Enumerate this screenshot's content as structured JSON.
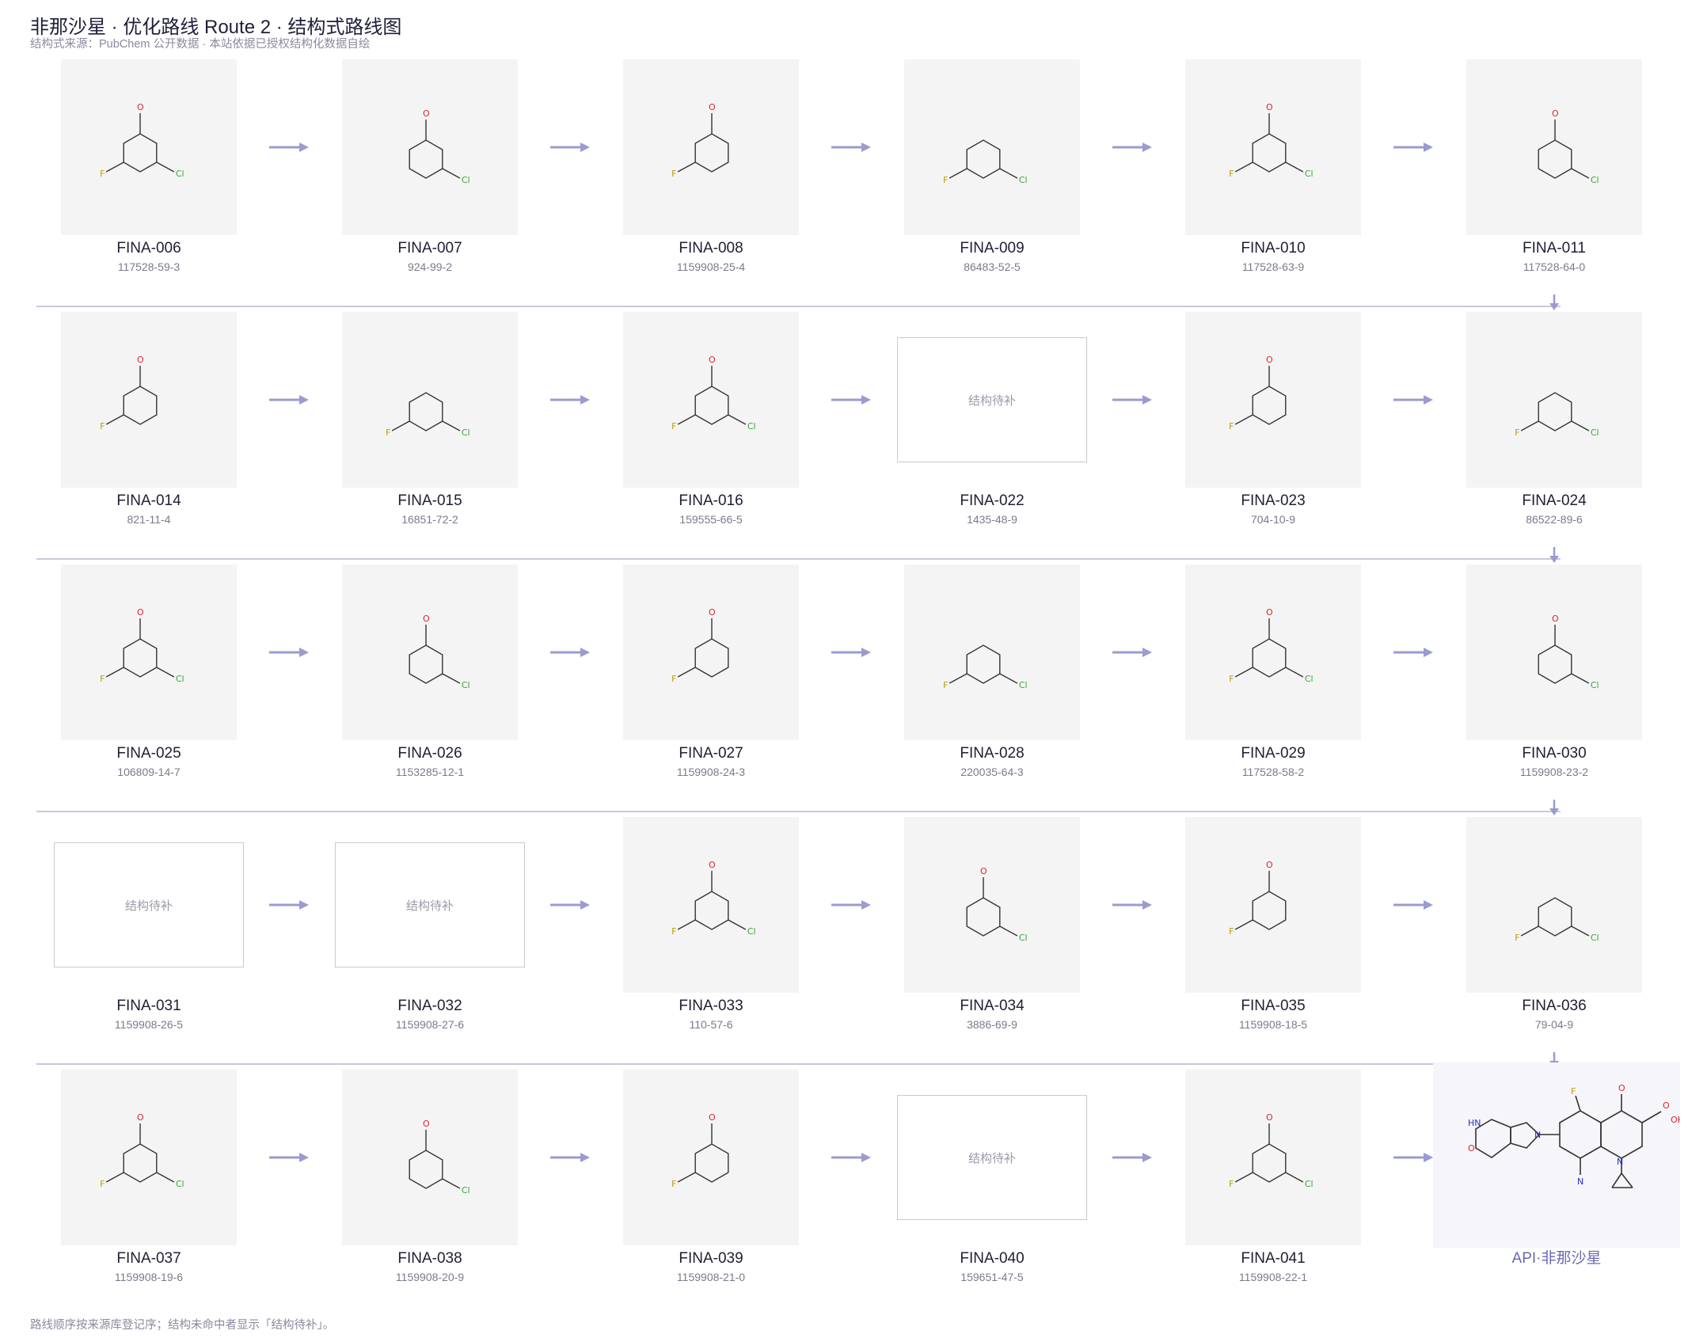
{
  "header": {
    "title": "非那沙星 · 优化路线 Route 2 · 结构式路线图",
    "subtitle": "结构式来源：PubChem 公开数据 · 本站依据已授权结构化数据自绘"
  },
  "placeholder_text": "结构待补",
  "compounds": [
    {
      "code": "FINA-006",
      "cas": "117528-59-3",
      "has_structure": true
    },
    {
      "code": "FINA-007",
      "cas": "924-99-2",
      "has_structure": true
    },
    {
      "code": "FINA-008",
      "cas": "1159908-25-4",
      "has_structure": true
    },
    {
      "code": "FINA-009",
      "cas": "86483-52-5",
      "has_structure": true
    },
    {
      "code": "FINA-010",
      "cas": "117528-63-9",
      "has_structure": true
    },
    {
      "code": "FINA-011",
      "cas": "117528-64-0",
      "has_structure": true
    },
    {
      "code": "FINA-014",
      "cas": "821-11-4",
      "has_structure": true
    },
    {
      "code": "FINA-015",
      "cas": "16851-72-2",
      "has_structure": true
    },
    {
      "code": "FINA-016",
      "cas": "159555-66-5",
      "has_structure": true
    },
    {
      "code": "FINA-022",
      "cas": "1435-48-9",
      "has_structure": false
    },
    {
      "code": "FINA-023",
      "cas": "704-10-9",
      "has_structure": true
    },
    {
      "code": "FINA-024",
      "cas": "86522-89-6",
      "has_structure": true
    },
    {
      "code": "FINA-025",
      "cas": "106809-14-7",
      "has_structure": true
    },
    {
      "code": "FINA-026",
      "cas": "1153285-12-1",
      "has_structure": true
    },
    {
      "code": "FINA-027",
      "cas": "1159908-24-3",
      "has_structure": true
    },
    {
      "code": "FINA-028",
      "cas": "220035-64-3",
      "has_structure": true
    },
    {
      "code": "FINA-029",
      "cas": "117528-58-2",
      "has_structure": true
    },
    {
      "code": "FINA-030",
      "cas": "1159908-23-2",
      "has_structure": true
    },
    {
      "code": "FINA-031",
      "cas": "1159908-26-5",
      "has_structure": false
    },
    {
      "code": "FINA-032",
      "cas": "1159908-27-6",
      "has_structure": false
    },
    {
      "code": "FINA-033",
      "cas": "110-57-6",
      "has_structure": true
    },
    {
      "code": "FINA-034",
      "cas": "3886-69-9",
      "has_structure": true
    },
    {
      "code": "FINA-035",
      "cas": "1159908-18-5",
      "has_structure": true
    },
    {
      "code": "FINA-036",
      "cas": "79-04-9",
      "has_structure": true
    },
    {
      "code": "FINA-037",
      "cas": "1159908-19-6",
      "has_structure": true
    },
    {
      "code": "FINA-038",
      "cas": "1159908-20-9",
      "has_structure": true
    },
    {
      "code": "FINA-039",
      "cas": "1159908-21-0",
      "has_structure": true
    },
    {
      "code": "FINA-040",
      "cas": "159651-47-5",
      "has_structure": false
    },
    {
      "code": "FINA-041",
      "cas": "1159908-22-1",
      "has_structure": true
    }
  ],
  "final_product": {
    "label": "API·非那沙星"
  },
  "footer": "路线顺序按来源库登记序；结构未命中者显示「结构待补」。",
  "colors": {
    "arrow": "#9b9bd0",
    "struct_bg": "#f4f4f4",
    "api_bg": "#f5f5fa",
    "title": "#1f1f3a",
    "muted": "#8a8aa0",
    "bond": "#333333",
    "oxygen": "#e0242b",
    "nitrogen": "#2030c8",
    "chlorine": "#39a539",
    "fluorine": "#b8a000",
    "sulfur": "#c8a800"
  },
  "icons": {
    "step_arrow": "right-arrow-icon",
    "row_turn": "down-arrow-icon"
  }
}
